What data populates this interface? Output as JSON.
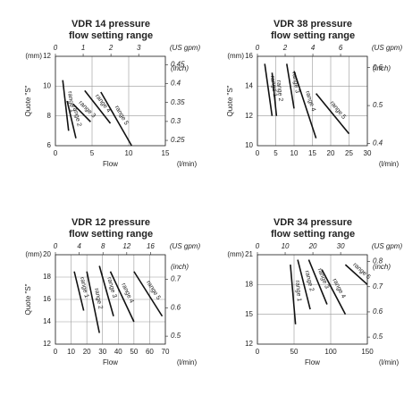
{
  "chart_data": [
    {
      "type": "line",
      "title": "VDR 14 pressure",
      "subtitle": "flow setting range",
      "x_label": "Flow",
      "x_unit": "(l/min)",
      "x2_label": "(US gpm)",
      "y_label": "Quote \"S\"",
      "y_unit": "(mm)",
      "y2_label": "(inch)",
      "xlim": [
        0,
        15
      ],
      "xticks": [
        0,
        5,
        10,
        15
      ],
      "x2lim": [
        0,
        3.96
      ],
      "x2ticks": [
        0,
        1,
        2,
        3
      ],
      "ylim": [
        6,
        12
      ],
      "yticks": [
        6,
        8,
        10,
        12
      ],
      "y2lim": [
        0.236,
        0.472
      ],
      "y2ticks": [
        0.25,
        0.3,
        0.35,
        0.4,
        0.45
      ],
      "grid": true,
      "series": [
        {
          "name": "range 1",
          "color": "#111111",
          "x": [
            1,
            1.8
          ],
          "values": [
            10.4,
            7
          ]
        },
        {
          "name": "range 2",
          "color": "#111111",
          "x": [
            1.6,
            2.8
          ],
          "values": [
            9,
            6.5
          ]
        },
        {
          "name": "range 3",
          "color": "#111111",
          "x": [
            2.4,
            4.8
          ],
          "values": [
            8.8,
            7.6
          ]
        },
        {
          "name": "range 4",
          "color": "#111111",
          "x": [
            4,
            7.5
          ],
          "values": [
            9.7,
            7.5
          ]
        },
        {
          "name": "range 5",
          "color": "#111111",
          "x": [
            6.2,
            10.4
          ],
          "values": [
            9.6,
            6
          ]
        }
      ]
    },
    {
      "type": "line",
      "title": "VDR 38 pressure",
      "subtitle": "flow setting range",
      "x_unit": "(l/min)",
      "x2_label": "(US gpm)",
      "y_label": "Quote \"S\"",
      "y_unit": "(mm)",
      "y2_label": "(inch)",
      "xlim": [
        0,
        30
      ],
      "xticks": [
        0,
        5,
        10,
        15,
        20,
        25,
        30
      ],
      "x2lim": [
        0,
        7.93
      ],
      "x2ticks": [
        0,
        2,
        4,
        6
      ],
      "ylim": [
        10,
        16
      ],
      "yticks": [
        10,
        12,
        14,
        16
      ],
      "y2lim": [
        0.394,
        0.63
      ],
      "y2ticks": [
        0.4,
        0.5,
        0.6
      ],
      "grid": true,
      "series": [
        {
          "name": "range 1",
          "color": "#111111",
          "x": [
            2,
            4
          ],
          "values": [
            15.5,
            12
          ]
        },
        {
          "name": "range 2",
          "color": "#111111",
          "x": [
            4,
            5.2
          ],
          "values": [
            14.9,
            12
          ]
        },
        {
          "name": "range 3",
          "color": "#111111",
          "x": [
            8,
            10
          ],
          "values": [
            15.5,
            12.5
          ]
        },
        {
          "name": "range 4",
          "color": "#111111",
          "x": [
            10,
            16
          ],
          "values": [
            15,
            10.5
          ]
        },
        {
          "name": "range 5",
          "color": "#111111",
          "x": [
            16,
            25
          ],
          "values": [
            13.5,
            10.8
          ]
        }
      ]
    },
    {
      "type": "line",
      "title": "VDR 12 pressure",
      "subtitle": "flow setting range",
      "x_label": "Flow",
      "x_unit": "(l/min)",
      "x2_label": "(US gpm)",
      "y_label": "Quote \"S\"",
      "y_unit": "(mm)",
      "y2_label": "(inch)",
      "xlim": [
        0,
        70
      ],
      "xticks": [
        0,
        10,
        20,
        30,
        40,
        50,
        60,
        70
      ],
      "x2lim": [
        0,
        18.49
      ],
      "x2ticks": [
        0,
        4,
        8,
        12,
        16
      ],
      "ylim": [
        12,
        20
      ],
      "yticks": [
        12,
        14,
        16,
        18,
        20
      ],
      "y2lim": [
        0.472,
        0.787
      ],
      "y2ticks": [
        0.5,
        0.6,
        0.7
      ],
      "grid": true,
      "series": [
        {
          "name": "range 1",
          "color": "#111111",
          "x": [
            12,
            18
          ],
          "values": [
            18.5,
            15
          ]
        },
        {
          "name": "range 2",
          "color": "#111111",
          "x": [
            20,
            28
          ],
          "values": [
            18.5,
            13
          ]
        },
        {
          "name": "range 3",
          "color": "#111111",
          "x": [
            28,
            37
          ],
          "values": [
            19,
            14.5
          ]
        },
        {
          "name": "range 4",
          "color": "#111111",
          "x": [
            35,
            50
          ],
          "values": [
            18.5,
            14
          ]
        },
        {
          "name": "range 5",
          "color": "#111111",
          "x": [
            50,
            68
          ],
          "values": [
            18.5,
            14.5
          ]
        }
      ]
    },
    {
      "type": "line",
      "title": "VDR 34 pressure",
      "subtitle": "flow setting range",
      "x_label": "Flow",
      "x_unit": "(l/min)",
      "x2_label": "(US gpm)",
      "y_unit": "(mm)",
      "y2_label": "(inch)",
      "xlim": [
        0,
        150
      ],
      "xticks": [
        0,
        50,
        100,
        150
      ],
      "x2lim": [
        0,
        39.63
      ],
      "x2ticks": [
        0,
        10,
        20,
        30
      ],
      "ylim": [
        12,
        21
      ],
      "yticks": [
        12,
        15,
        18,
        21
      ],
      "y2lim": [
        0.472,
        0.827
      ],
      "y2ticks": [
        0.5,
        0.6,
        0.7,
        0.8
      ],
      "grid": true,
      "series": [
        {
          "name": "range 1",
          "color": "#111111",
          "x": [
            45,
            52
          ],
          "values": [
            20,
            14
          ]
        },
        {
          "name": "range 2",
          "color": "#111111",
          "x": [
            55,
            72
          ],
          "values": [
            20.5,
            15.5
          ]
        },
        {
          "name": "range 3",
          "color": "#111111",
          "x": [
            70,
            95
          ],
          "values": [
            20.5,
            16
          ]
        },
        {
          "name": "range 4",
          "color": "#111111",
          "x": [
            88,
            120
          ],
          "values": [
            19.5,
            15
          ]
        },
        {
          "name": "range 5",
          "color": "#111111",
          "x": [
            120,
            150
          ],
          "values": [
            20,
            18
          ]
        }
      ]
    }
  ]
}
